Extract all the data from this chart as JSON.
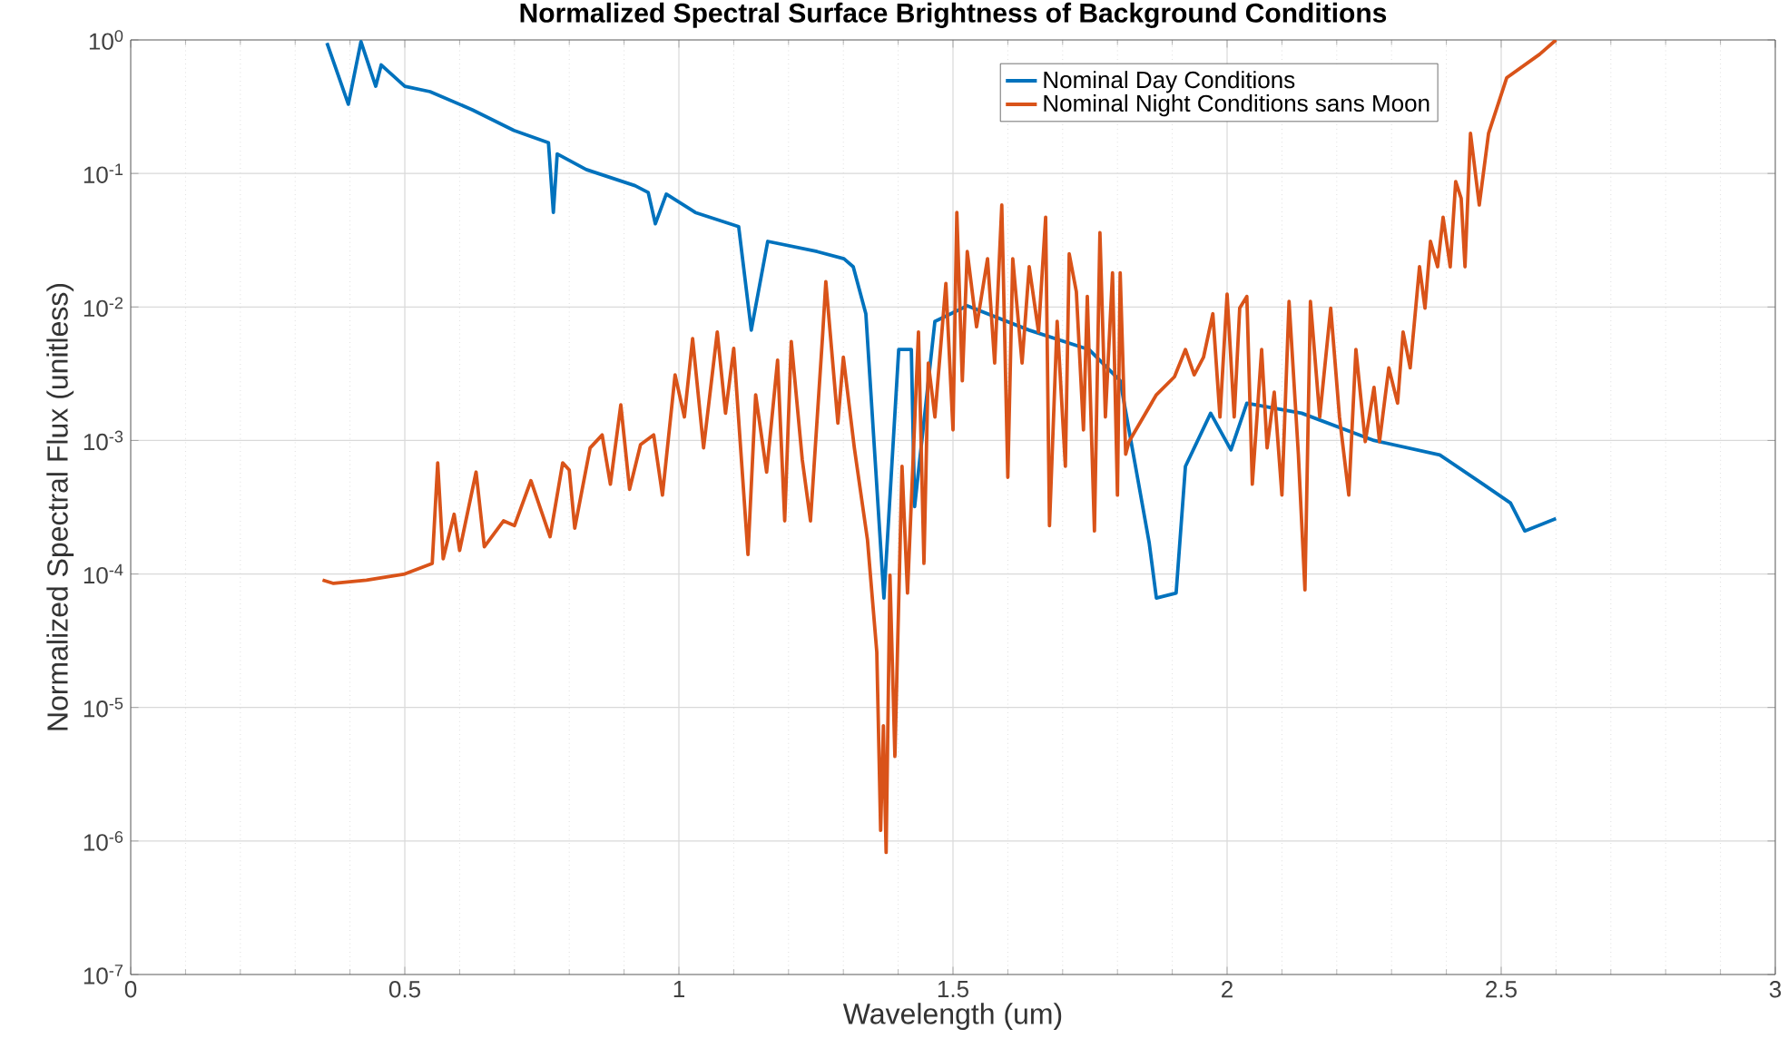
{
  "chart_data": {
    "type": "line",
    "title": "Normalized Spectral Surface Brightness of Background Conditions",
    "xlabel": "Wavelength (um)",
    "ylabel": "Normalized Spectral Flux (unitless)",
    "series": [
      {
        "name": "Nominal Day Conditions",
        "color": "#0072bd",
        "x": [
          0.358,
          0.397,
          0.42,
          0.447,
          0.457,
          0.5,
          0.546,
          0.623,
          0.699,
          0.762,
          0.771,
          0.778,
          0.831,
          0.92,
          0.944,
          0.957,
          0.977,
          1.03,
          1.109,
          1.132,
          1.162,
          1.252,
          1.301,
          1.318,
          1.341,
          1.374,
          1.401,
          1.424,
          1.43,
          1.467,
          1.526,
          1.639,
          1.748,
          1.805,
          1.858,
          1.871,
          1.907,
          1.924,
          1.97,
          2.007,
          2.036,
          2.136,
          2.268,
          2.388,
          2.467,
          2.517,
          2.543,
          2.6
        ],
        "values": [
          0.95,
          0.33,
          0.97,
          0.45,
          0.65,
          0.45,
          0.41,
          0.3,
          0.21,
          0.17,
          0.051,
          0.14,
          0.107,
          0.081,
          0.072,
          0.042,
          0.07,
          0.051,
          0.04,
          0.0067,
          0.031,
          0.026,
          0.023,
          0.02,
          0.0089,
          6.6e-05,
          0.0048,
          0.0048,
          0.00032,
          0.0078,
          0.0102,
          0.0067,
          0.0048,
          0.0028,
          0.00017,
          6.6e-05,
          7.2e-05,
          0.00064,
          0.0016,
          0.00085,
          0.0019,
          0.0016,
          0.001,
          0.00078,
          0.00047,
          0.00034,
          0.00021,
          0.00026
        ]
      },
      {
        "name": "Nominal Night Conditions sans Moon",
        "color": "#d95319",
        "x": [
          0.35,
          0.37,
          0.43,
          0.5,
          0.55,
          0.56,
          0.57,
          0.59,
          0.6,
          0.63,
          0.645,
          0.68,
          0.7,
          0.73,
          0.765,
          0.788,
          0.8,
          0.81,
          0.838,
          0.86,
          0.875,
          0.894,
          0.91,
          0.93,
          0.954,
          0.97,
          0.993,
          1.01,
          1.025,
          1.045,
          1.07,
          1.085,
          1.1,
          1.126,
          1.14,
          1.16,
          1.18,
          1.193,
          1.205,
          1.225,
          1.24,
          1.262,
          1.268,
          1.29,
          1.3,
          1.32,
          1.344,
          1.361,
          1.368,
          1.373,
          1.378,
          1.385,
          1.394,
          1.407,
          1.417,
          1.437,
          1.447,
          1.455,
          1.467,
          1.487,
          1.5,
          1.507,
          1.517,
          1.526,
          1.543,
          1.563,
          1.576,
          1.589,
          1.6,
          1.609,
          1.626,
          1.639,
          1.656,
          1.669,
          1.676,
          1.69,
          1.705,
          1.712,
          1.725,
          1.738,
          1.745,
          1.758,
          1.768,
          1.778,
          1.791,
          1.8,
          1.805,
          1.815,
          1.821,
          1.871,
          1.904,
          1.924,
          1.94,
          1.957,
          1.974,
          1.987,
          2.0,
          2.013,
          2.023,
          2.036,
          2.046,
          2.063,
          2.073,
          2.086,
          2.1,
          2.113,
          2.13,
          2.142,
          2.152,
          2.169,
          2.189,
          2.205,
          2.222,
          2.235,
          2.252,
          2.268,
          2.278,
          2.295,
          2.311,
          2.321,
          2.334,
          2.351,
          2.361,
          2.371,
          2.384,
          2.394,
          2.407,
          2.417,
          2.427,
          2.434,
          2.444,
          2.46,
          2.477,
          2.51,
          2.57,
          2.6
        ],
        "values": [
          9e-05,
          8.5e-05,
          9e-05,
          0.0001,
          0.00012,
          0.00068,
          0.00013,
          0.00028,
          0.00015,
          0.00058,
          0.00016,
          0.00025,
          0.00023,
          0.0005,
          0.00019,
          0.00068,
          0.0006,
          0.00022,
          0.00088,
          0.0011,
          0.00047,
          0.00185,
          0.00043,
          0.00093,
          0.0011,
          0.00039,
          0.0031,
          0.0015,
          0.0058,
          0.00088,
          0.0065,
          0.0016,
          0.0049,
          0.00014,
          0.0022,
          0.00058,
          0.004,
          0.00025,
          0.0055,
          0.00072,
          0.00025,
          0.006,
          0.0155,
          0.00135,
          0.0042,
          0.00088,
          0.00018,
          2.6e-05,
          1.2e-06,
          7.3e-06,
          8.2e-07,
          9.8e-05,
          4.3e-06,
          0.00064,
          7.2e-05,
          0.0065,
          0.00012,
          0.0038,
          0.0015,
          0.015,
          0.0012,
          0.051,
          0.0028,
          0.026,
          0.0071,
          0.023,
          0.0038,
          0.058,
          0.00053,
          0.023,
          0.0038,
          0.02,
          0.0065,
          0.047,
          0.00023,
          0.0078,
          0.00064,
          0.025,
          0.013,
          0.0012,
          0.012,
          0.00021,
          0.036,
          0.0015,
          0.018,
          0.00039,
          0.018,
          0.00079,
          0.00098,
          0.0022,
          0.003,
          0.0048,
          0.0031,
          0.0042,
          0.0089,
          0.0015,
          0.0125,
          0.0015,
          0.0098,
          0.012,
          0.00047,
          0.0048,
          0.00088,
          0.0023,
          0.00039,
          0.011,
          0.00079,
          7.6e-05,
          0.011,
          0.0015,
          0.0098,
          0.0015,
          0.00039,
          0.0048,
          0.00098,
          0.0025,
          0.00098,
          0.0035,
          0.0019,
          0.0065,
          0.0035,
          0.02,
          0.0098,
          0.031,
          0.02,
          0.047,
          0.02,
          0.087,
          0.065,
          0.02,
          0.2,
          0.058,
          0.2,
          0.52,
          0.78,
          1.0
        ]
      }
    ],
    "xlim": [
      0,
      3
    ],
    "ylim": [
      1e-07,
      1
    ],
    "xticks": [
      0,
      0.5,
      1,
      1.5,
      2,
      2.5,
      3
    ],
    "yticks": [
      {
        "value": 1e-07,
        "label": "10$^{-7}$"
      },
      {
        "value": 1e-06,
        "label": "10$^{-6}$"
      },
      {
        "value": 1e-05,
        "label": "10$^{-5}$"
      },
      {
        "value": 0.0001,
        "label": "10$^{-4}$"
      },
      {
        "value": 0.001,
        "label": "10$^{-3}$"
      },
      {
        "value": 0.01,
        "label": "10$^{-2}$"
      },
      {
        "value": 0.1,
        "label": "10$^{-1}$"
      },
      {
        "value": 1,
        "label": "10$^{0}$"
      }
    ],
    "log": true,
    "grid": true,
    "legend": "top right"
  }
}
